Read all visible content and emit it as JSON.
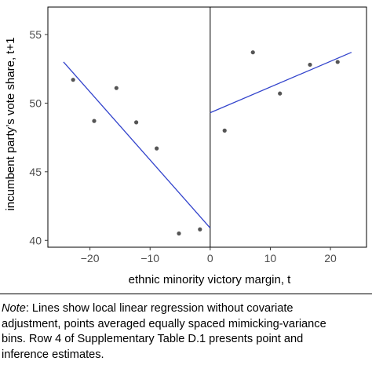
{
  "chart_data": {
    "type": "scatter",
    "xlabel": "ethnic minority victory margin, t",
    "ylabel": "incumbent party’s vote share, t+1",
    "xlim": [
      -27,
      26
    ],
    "ylim": [
      39.5,
      57
    ],
    "x_ticks": [
      -20,
      -10,
      0,
      10,
      20
    ],
    "x_tick_labels": [
      "−20",
      "−10",
      "0",
      "10",
      "20"
    ],
    "y_ticks": [
      40,
      45,
      50,
      55
    ],
    "y_tick_labels": [
      "40",
      "45",
      "50",
      "55"
    ],
    "grid": false,
    "cutoff_x": 0,
    "points": [
      {
        "x": -22.8,
        "y": 51.7
      },
      {
        "x": -19.3,
        "y": 48.7
      },
      {
        "x": -15.6,
        "y": 51.1
      },
      {
        "x": -12.3,
        "y": 48.6
      },
      {
        "x": -8.9,
        "y": 46.7
      },
      {
        "x": -5.2,
        "y": 40.5
      },
      {
        "x": -1.7,
        "y": 40.8
      },
      {
        "x": 2.4,
        "y": 48.0
      },
      {
        "x": 7.1,
        "y": 53.7
      },
      {
        "x": 11.6,
        "y": 50.7
      },
      {
        "x": 16.6,
        "y": 52.8
      },
      {
        "x": 21.2,
        "y": 53.0
      }
    ],
    "fit_lines": [
      {
        "side": "left",
        "x": [
          -24.4,
          0
        ],
        "y": [
          53.0,
          40.9
        ]
      },
      {
        "side": "right",
        "x": [
          0,
          23.5
        ],
        "y": [
          49.3,
          53.7
        ]
      }
    ],
    "colors": {
      "points": "#555555",
      "fit": "#3344cc",
      "frame": "#000000"
    }
  },
  "caption": {
    "note_label": "Note",
    "lines": [
      ": Lines show local linear regression without covariate",
      "adjustment, points averaged equally spaced mimicking-variance",
      "bins. Row 4 of Supplementary Table D.1 presents point and",
      "inference estimates."
    ]
  }
}
